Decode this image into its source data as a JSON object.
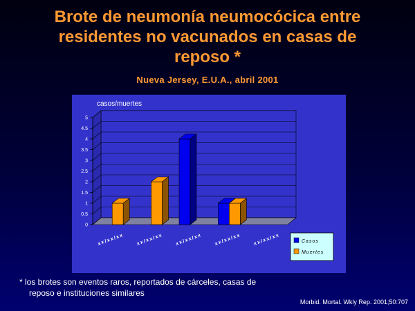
{
  "slide": {
    "title_lines": [
      "Brote de neumonía neumocócica entre",
      "residentes no vacunados en casas de",
      "reposo *"
    ],
    "subtitle": "Nueva Jersey, E.U.A., abril 2001",
    "footnote_lines": [
      "* los brotes son eventos raros, reportados de cárceles, casas de",
      "reposo e instituciones similares"
    ],
    "source": "Morbid. Mortal. Wkly Rep. 2001;50:707"
  },
  "chart_data": {
    "type": "bar",
    "ylabel": "casos/muertes",
    "ylim": [
      0,
      5
    ],
    "yticks": [
      "0",
      "0.5",
      "1",
      "1.5",
      "2",
      "2.5",
      "3",
      "3.5",
      "4",
      "4.5",
      "5"
    ],
    "categories": [
      "xx/xx/xx",
      "xx/xx/xx",
      "xx/xx/xx",
      "xx/xx/xx",
      "xx/xx/xx"
    ],
    "series": [
      {
        "name": "Casos",
        "color": "#0000ee",
        "values": [
          0,
          0,
          4,
          1,
          0
        ]
      },
      {
        "name": "Muertes",
        "color": "#ff9900",
        "values": [
          1,
          2,
          0,
          1,
          0
        ]
      }
    ],
    "legend_position": "bottom-right",
    "colors": {
      "panel": "#3333cc",
      "floor": "#8080a0",
      "wall": "#3333cc"
    }
  }
}
